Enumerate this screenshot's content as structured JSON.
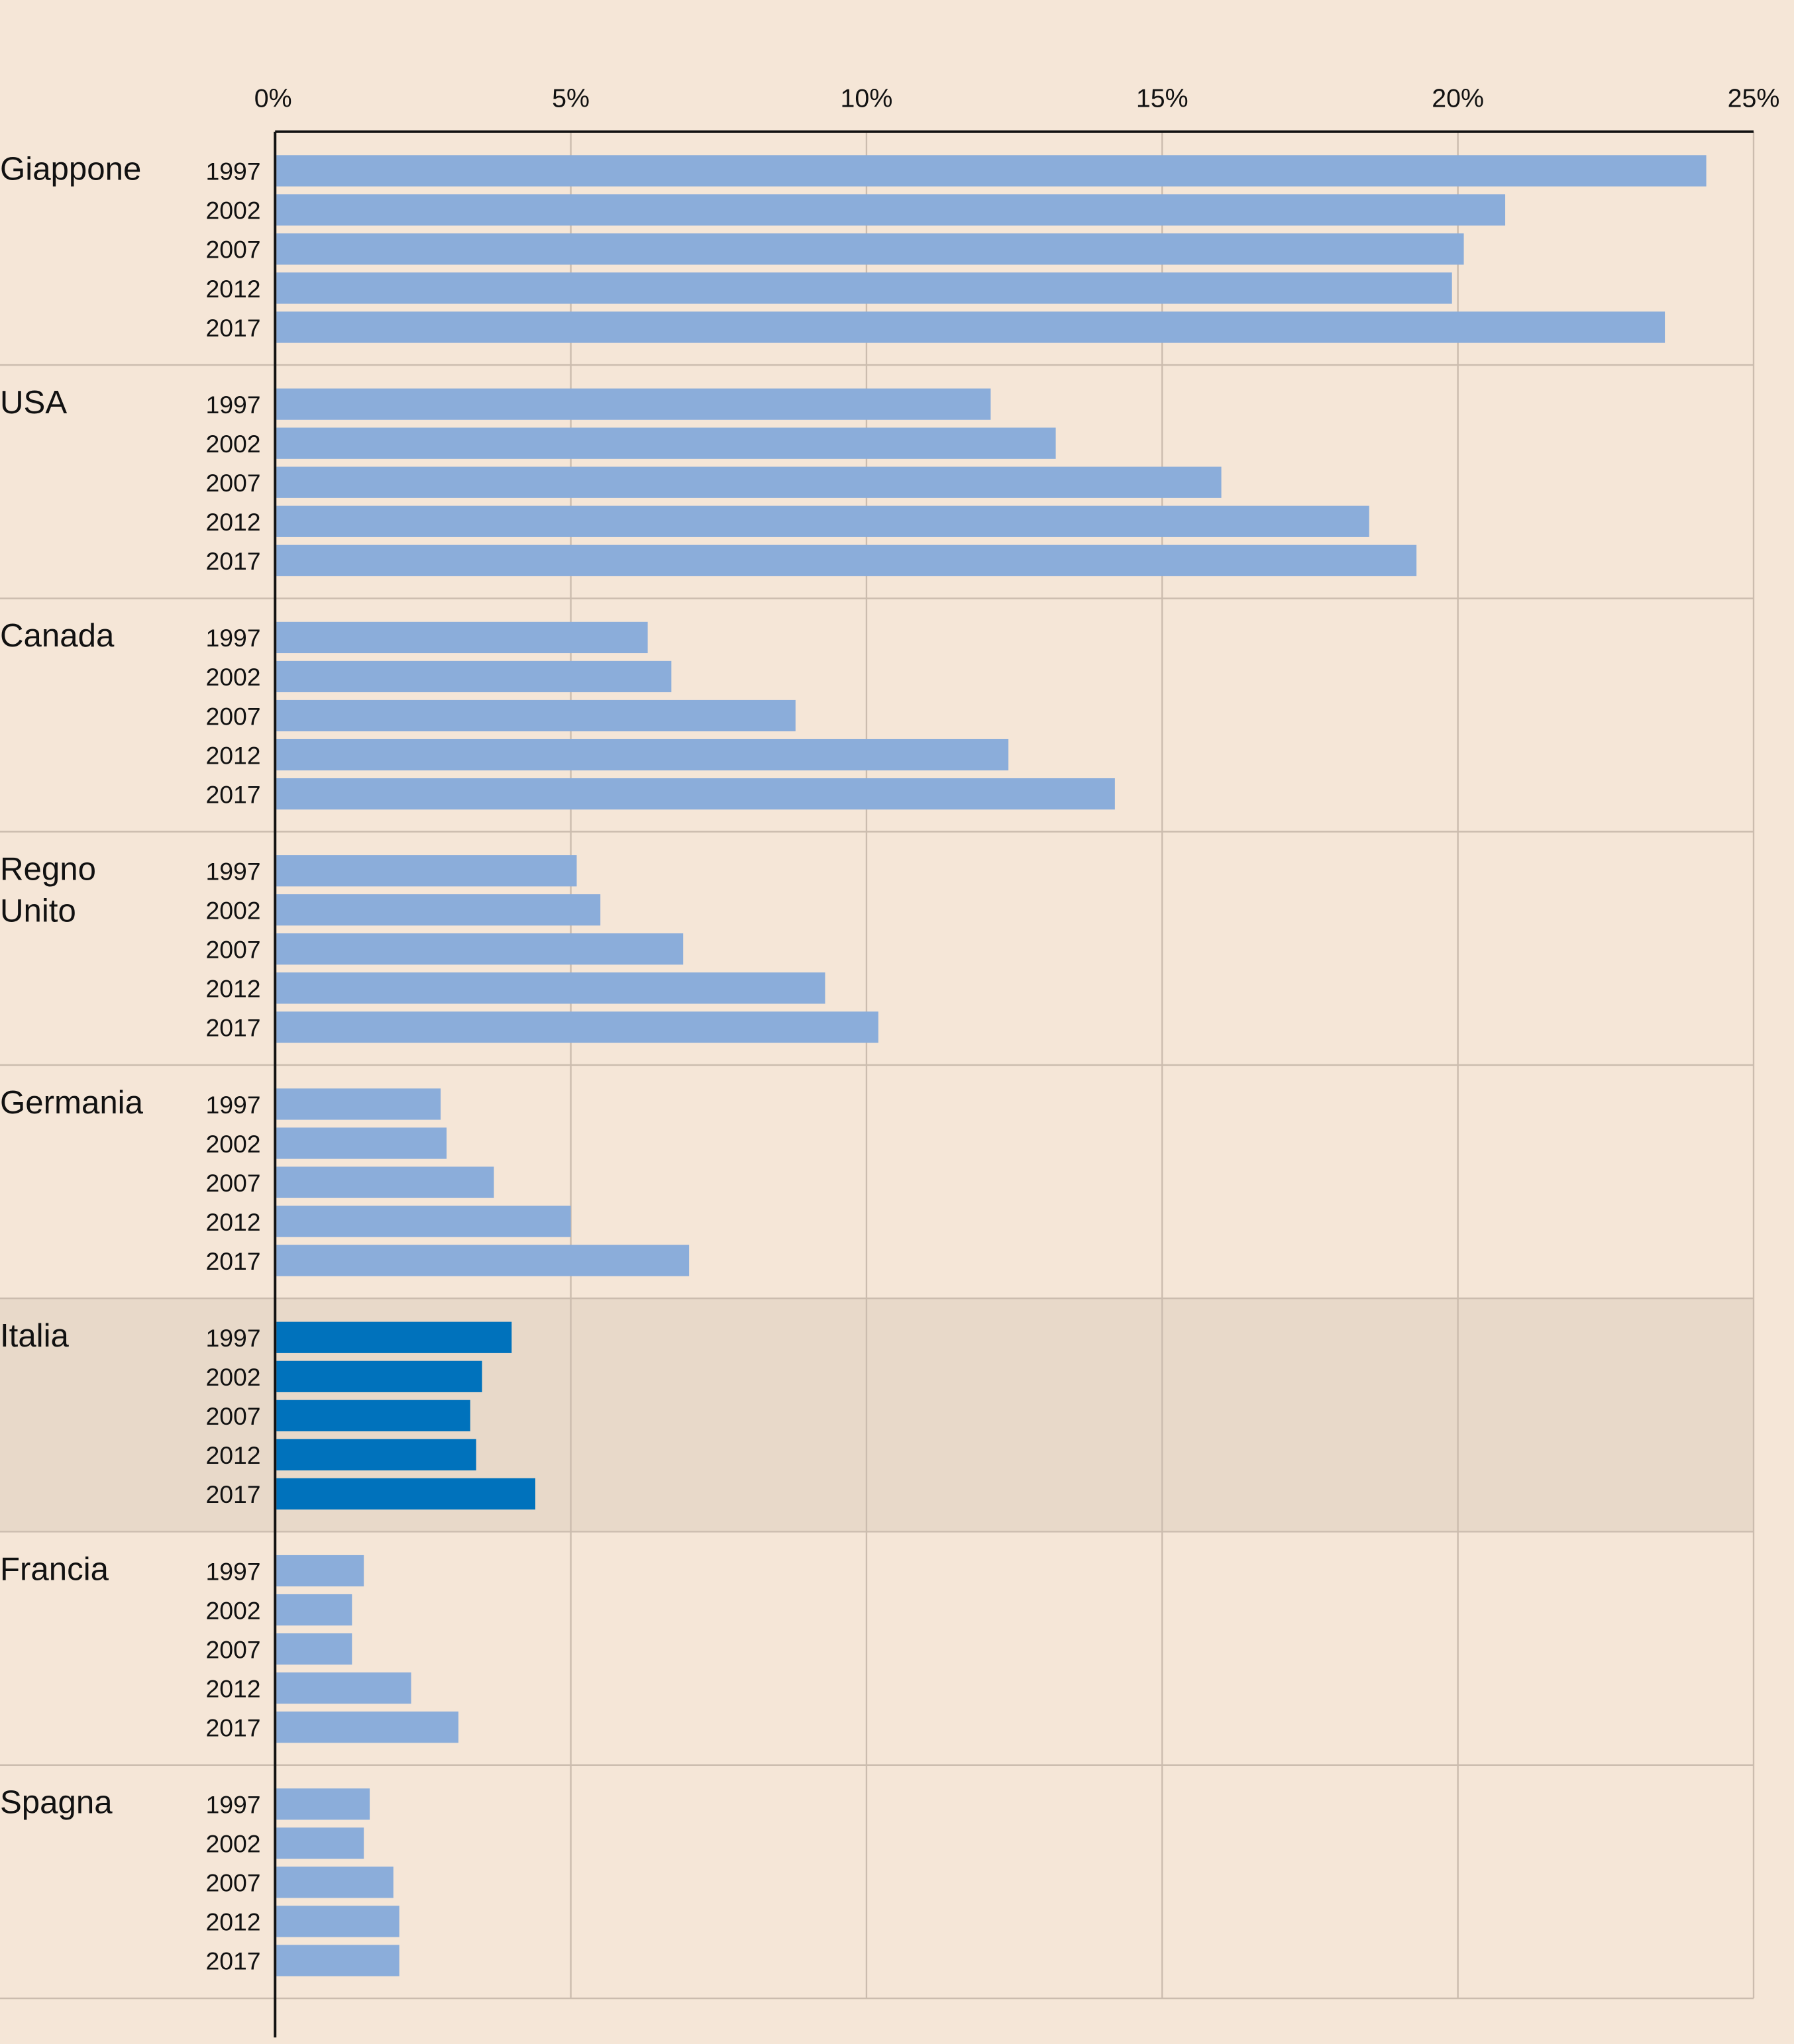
{
  "chart_data": {
    "type": "bar",
    "orientation": "horizontal",
    "title": "",
    "xlabel": "",
    "ylabel": "",
    "xlim": [
      0,
      25
    ],
    "x_ticks": [
      "0%",
      "5%",
      "10%",
      "15%",
      "20%",
      "25%"
    ],
    "x_tick_values": [
      0,
      5,
      10,
      15,
      20,
      25
    ],
    "grid": true,
    "years": [
      "1997",
      "2002",
      "2007",
      "2012",
      "2017"
    ],
    "colors": {
      "background": "#f5e6d7",
      "bar": "#8badda",
      "highlight_bar": "#0072bc",
      "highlight_band": "#e8d9c9",
      "grid": "#cbbcae"
    },
    "groups": [
      {
        "country": [
          "Giappone"
        ],
        "highlight": false,
        "values": [
          24.2,
          20.8,
          20.1,
          19.9,
          23.5
        ]
      },
      {
        "country": [
          "USA"
        ],
        "highlight": false,
        "values": [
          12.1,
          13.2,
          16.0,
          18.5,
          19.3
        ]
      },
      {
        "country": [
          "Canada"
        ],
        "highlight": false,
        "values": [
          6.3,
          6.7,
          8.8,
          12.4,
          14.2
        ]
      },
      {
        "country": [
          "Regno",
          "Unito"
        ],
        "highlight": false,
        "values": [
          5.1,
          5.5,
          6.9,
          9.3,
          10.2
        ]
      },
      {
        "country": [
          "Germania"
        ],
        "highlight": false,
        "values": [
          2.8,
          2.9,
          3.7,
          5.0,
          7.0
        ]
      },
      {
        "country": [
          "Italia"
        ],
        "highlight": true,
        "values": [
          4.0,
          3.5,
          3.3,
          3.4,
          4.4
        ]
      },
      {
        "country": [
          "Francia"
        ],
        "highlight": false,
        "values": [
          1.5,
          1.3,
          1.3,
          2.3,
          3.1
        ]
      },
      {
        "country": [
          "Spagna"
        ],
        "highlight": false,
        "values": [
          1.6,
          1.5,
          2.0,
          2.1,
          2.1
        ]
      }
    ]
  }
}
